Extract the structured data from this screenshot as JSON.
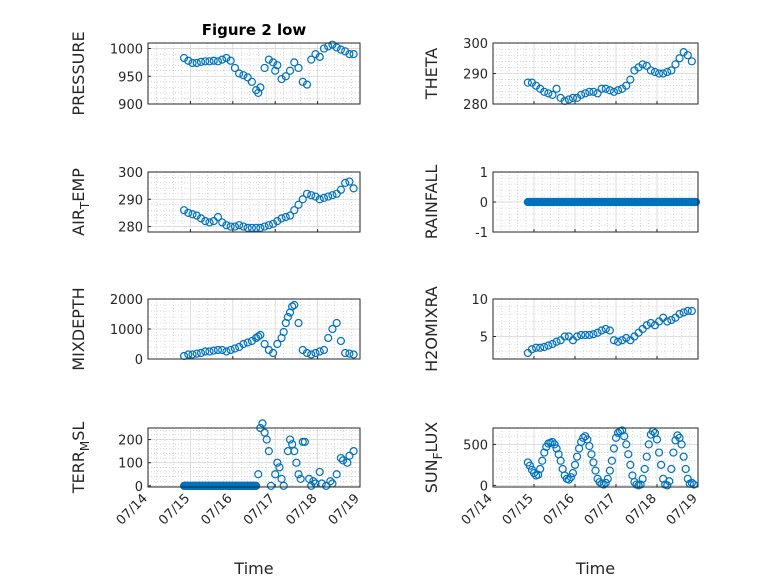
{
  "figure": {
    "title": "Figure 2 low",
    "time_label": "Time"
  },
  "colors": {
    "marker": "#0072BD",
    "axis": "#262626",
    "grid": "#bfbfbf",
    "background": "#ffffff"
  },
  "chart_data": [
    {
      "type": "scatter",
      "ylabel": "PRESSURE",
      "title": "Figure 2 low",
      "xlim": [
        0,
        5
      ],
      "ylim": [
        900,
        1010
      ],
      "yticks": [
        900,
        950,
        1000
      ],
      "xtick_labels": [
        "07/14",
        "07/15",
        "07/16",
        "07/17",
        "07/18",
        "07/19"
      ],
      "show_xtick_labels": false,
      "grid": "on (major + minor)",
      "x": [
        0.85,
        0.95,
        1.05,
        1.15,
        1.25,
        1.35,
        1.45,
        1.55,
        1.65,
        1.75,
        1.85,
        1.95,
        2.05,
        2.15,
        2.25,
        2.35,
        2.45,
        2.55,
        2.6,
        2.65,
        2.75,
        2.85,
        2.95,
        3.0,
        3.05,
        3.15,
        3.25,
        3.35,
        3.45,
        3.55,
        3.65,
        3.75,
        3.85,
        3.95,
        4.05,
        4.15,
        4.25,
        4.35,
        4.45,
        4.55,
        4.65,
        4.75,
        4.85
      ],
      "y": [
        983,
        978,
        974,
        974,
        976,
        977,
        977,
        978,
        977,
        980,
        983,
        978,
        965,
        955,
        952,
        948,
        940,
        925,
        920,
        930,
        965,
        980,
        975,
        960,
        970,
        945,
        950,
        960,
        975,
        965,
        940,
        935,
        980,
        990,
        985,
        1000,
        1004,
        1007,
        1002,
        998,
        995,
        990,
        990
      ]
    },
    {
      "type": "scatter",
      "ylabel": "THETA",
      "xlim": [
        0,
        5
      ],
      "ylim": [
        280,
        300
      ],
      "yticks": [
        280,
        290,
        300
      ],
      "show_xtick_labels": false,
      "grid": "on (major + minor)",
      "x": [
        0.85,
        0.95,
        1.05,
        1.15,
        1.25,
        1.35,
        1.45,
        1.55,
        1.65,
        1.75,
        1.85,
        1.95,
        2.05,
        2.15,
        2.25,
        2.35,
        2.45,
        2.55,
        2.65,
        2.75,
        2.85,
        2.95,
        3.05,
        3.15,
        3.25,
        3.35,
        3.45,
        3.55,
        3.65,
        3.75,
        3.85,
        3.95,
        4.05,
        4.15,
        4.25,
        4.35,
        4.45,
        4.55,
        4.65,
        4.75,
        4.85
      ],
      "y": [
        287,
        287,
        286,
        285,
        284,
        283.5,
        283,
        285,
        282,
        281,
        281.5,
        282,
        282,
        283,
        283.5,
        284,
        284,
        283.5,
        285,
        285,
        284.5,
        284,
        284.5,
        285,
        286,
        288,
        291,
        292,
        293,
        292.5,
        291,
        290.5,
        290,
        290,
        290.5,
        291,
        293,
        295,
        297,
        296,
        294
      ]
    },
    {
      "type": "scatter",
      "ylabel": "AIR_TEMP",
      "xlim": [
        0,
        5
      ],
      "ylim": [
        278,
        300
      ],
      "yticks": [
        280,
        290,
        300
      ],
      "show_xtick_labels": false,
      "grid": "on (major + minor)",
      "x": [
        0.85,
        0.95,
        1.05,
        1.15,
        1.25,
        1.35,
        1.45,
        1.55,
        1.65,
        1.75,
        1.85,
        1.95,
        2.05,
        2.15,
        2.25,
        2.35,
        2.45,
        2.55,
        2.65,
        2.75,
        2.85,
        2.95,
        3.05,
        3.15,
        3.25,
        3.35,
        3.45,
        3.55,
        3.65,
        3.75,
        3.85,
        3.95,
        4.05,
        4.15,
        4.25,
        4.35,
        4.45,
        4.55,
        4.65,
        4.75,
        4.85
      ],
      "y": [
        286,
        285,
        284.5,
        284,
        283,
        282,
        281.5,
        282,
        283.5,
        281.5,
        280.5,
        280,
        280,
        280.5,
        280,
        279.5,
        279.5,
        279.5,
        279.5,
        280,
        280.5,
        281,
        282,
        283,
        283.5,
        284,
        286,
        288,
        290,
        292,
        291.5,
        291,
        290,
        290.5,
        291,
        291.5,
        292,
        293.5,
        296,
        296.5,
        294
      ]
    },
    {
      "type": "scatter",
      "ylabel": "RAINFALL",
      "xlim": [
        0,
        5
      ],
      "ylim": [
        -1,
        1
      ],
      "yticks": [
        -1,
        0,
        1
      ],
      "show_xtick_labels": false,
      "grid": "on (major + minor)",
      "x_range": [
        0.85,
        4.95
      ],
      "constant_value": 0
    },
    {
      "type": "scatter",
      "ylabel": "MIXDEPTH",
      "xlim": [
        0,
        5
      ],
      "ylim": [
        0,
        2000
      ],
      "yticks": [
        0,
        1000,
        2000
      ],
      "show_xtick_labels": false,
      "grid": "on (major + minor)",
      "x": [
        0.85,
        0.95,
        1.05,
        1.15,
        1.25,
        1.35,
        1.45,
        1.55,
        1.65,
        1.75,
        1.85,
        1.95,
        2.05,
        2.15,
        2.25,
        2.35,
        2.45,
        2.55,
        2.6,
        2.65,
        2.75,
        2.85,
        2.95,
        3.05,
        3.15,
        3.2,
        3.25,
        3.3,
        3.35,
        3.4,
        3.45,
        3.55,
        3.65,
        3.75,
        3.85,
        3.95,
        4.05,
        4.15,
        4.25,
        4.35,
        4.45,
        4.55,
        4.65,
        4.75,
        4.85
      ],
      "y": [
        100,
        150,
        150,
        180,
        200,
        250,
        250,
        280,
        300,
        300,
        250,
        300,
        350,
        400,
        500,
        550,
        600,
        700,
        750,
        800,
        500,
        300,
        200,
        500,
        700,
        900,
        1200,
        1400,
        1550,
        1750,
        1800,
        1200,
        300,
        200,
        150,
        200,
        250,
        300,
        700,
        1000,
        1200,
        600,
        200,
        180,
        150
      ]
    },
    {
      "type": "scatter",
      "ylabel": "H2OMIXRA",
      "xlim": [
        0,
        5
      ],
      "ylim": [
        2,
        10
      ],
      "yticks": [
        5,
        10
      ],
      "show_xtick_labels": false,
      "grid": "on (major + minor)",
      "x": [
        0.85,
        0.95,
        1.05,
        1.15,
        1.25,
        1.35,
        1.45,
        1.55,
        1.65,
        1.75,
        1.85,
        1.95,
        2.05,
        2.15,
        2.25,
        2.35,
        2.45,
        2.55,
        2.65,
        2.75,
        2.85,
        2.95,
        3.05,
        3.15,
        3.25,
        3.35,
        3.45,
        3.55,
        3.65,
        3.75,
        3.85,
        3.95,
        4.05,
        4.15,
        4.25,
        4.35,
        4.45,
        4.55,
        4.65,
        4.75,
        4.85
      ],
      "y": [
        2.8,
        3.3,
        3.5,
        3.5,
        3.6,
        3.8,
        4,
        4.3,
        4.5,
        5,
        5,
        4.5,
        5,
        5.2,
        5.2,
        5.2,
        5.3,
        5.5,
        5.8,
        6,
        5.8,
        4.5,
        4.3,
        4.5,
        4.8,
        4.5,
        5,
        5.5,
        6,
        6.5,
        6.8,
        6.5,
        7,
        7.5,
        7,
        7.2,
        7.5,
        8,
        8.2,
        8.4,
        8.4
      ]
    },
    {
      "type": "scatter",
      "ylabel": "TERR_MSL",
      "xlim": [
        0,
        5
      ],
      "ylim": [
        -5,
        250
      ],
      "yticks": [
        0,
        100,
        200
      ],
      "xticks": [
        0,
        1,
        2,
        3,
        4,
        5
      ],
      "xtick_labels": [
        "07/14",
        "07/15",
        "07/16",
        "07/17",
        "07/18",
        "07/19"
      ],
      "show_xtick_labels": true,
      "xlabel": "Time",
      "grid": "on (major + minor)",
      "zero_run": [
        0.85,
        2.55
      ],
      "x": [
        2.6,
        2.65,
        2.7,
        2.75,
        2.8,
        2.85,
        2.9,
        3.0,
        3.05,
        3.1,
        3.15,
        3.2,
        3.3,
        3.35,
        3.4,
        3.45,
        3.5,
        3.55,
        3.6,
        3.65,
        3.7,
        3.8,
        3.85,
        3.9,
        3.95,
        4.05,
        4.1,
        4.2,
        4.3,
        4.35,
        4.45,
        4.55,
        4.6,
        4.7,
        4.75,
        4.85
      ],
      "y": [
        50,
        250,
        270,
        230,
        200,
        150,
        0,
        50,
        100,
        80,
        30,
        0,
        150,
        200,
        180,
        150,
        100,
        50,
        30,
        190,
        190,
        30,
        0,
        20,
        10,
        60,
        10,
        0,
        20,
        10,
        50,
        120,
        110,
        100,
        130,
        150
      ]
    },
    {
      "type": "scatter",
      "ylabel": "SUN_FLUX",
      "xlim": [
        0,
        5
      ],
      "ylim": [
        -20,
        700
      ],
      "yticks": [
        0,
        500
      ],
      "xticks": [
        0,
        1,
        2,
        3,
        4,
        5
      ],
      "xtick_labels": [
        "07/14",
        "07/15",
        "07/16",
        "07/17",
        "07/18",
        "07/19"
      ],
      "show_xtick_labels": true,
      "xlabel": "Time",
      "grid": "on (major + minor)",
      "x": [
        0.85,
        0.9,
        0.95,
        1.0,
        1.05,
        1.1,
        1.15,
        1.2,
        1.25,
        1.3,
        1.35,
        1.4,
        1.45,
        1.5,
        1.55,
        1.6,
        1.65,
        1.7,
        1.75,
        1.8,
        1.85,
        1.9,
        1.95,
        2.0,
        2.05,
        2.1,
        2.15,
        2.2,
        2.25,
        2.3,
        2.35,
        2.4,
        2.45,
        2.5,
        2.55,
        2.6,
        2.65,
        2.7,
        2.75,
        2.8,
        2.85,
        2.9,
        2.95,
        3.0,
        3.05,
        3.1,
        3.15,
        3.2,
        3.25,
        3.3,
        3.35,
        3.4,
        3.45,
        3.5,
        3.55,
        3.6,
        3.65,
        3.7,
        3.75,
        3.8,
        3.85,
        3.9,
        3.95,
        4.0,
        4.05,
        4.1,
        4.15,
        4.2,
        4.25,
        4.3,
        4.35,
        4.4,
        4.45,
        4.5,
        4.55,
        4.6,
        4.65,
        4.7,
        4.75,
        4.8,
        4.85,
        4.9
      ],
      "y": [
        280,
        240,
        190,
        150,
        120,
        130,
        200,
        300,
        400,
        470,
        510,
        520,
        530,
        500,
        450,
        380,
        300,
        200,
        120,
        80,
        70,
        100,
        150,
        250,
        350,
        450,
        530,
        580,
        600,
        560,
        480,
        380,
        280,
        180,
        80,
        40,
        20,
        10,
        30,
        80,
        180,
        300,
        450,
        580,
        640,
        660,
        670,
        600,
        500,
        380,
        250,
        120,
        40,
        10,
        0,
        10,
        80,
        200,
        350,
        500,
        620,
        660,
        640,
        560,
        400,
        250,
        80,
        10,
        0,
        50,
        200,
        400,
        550,
        610,
        580,
        500,
        350,
        200,
        80,
        20,
        30,
        10
      ]
    }
  ]
}
